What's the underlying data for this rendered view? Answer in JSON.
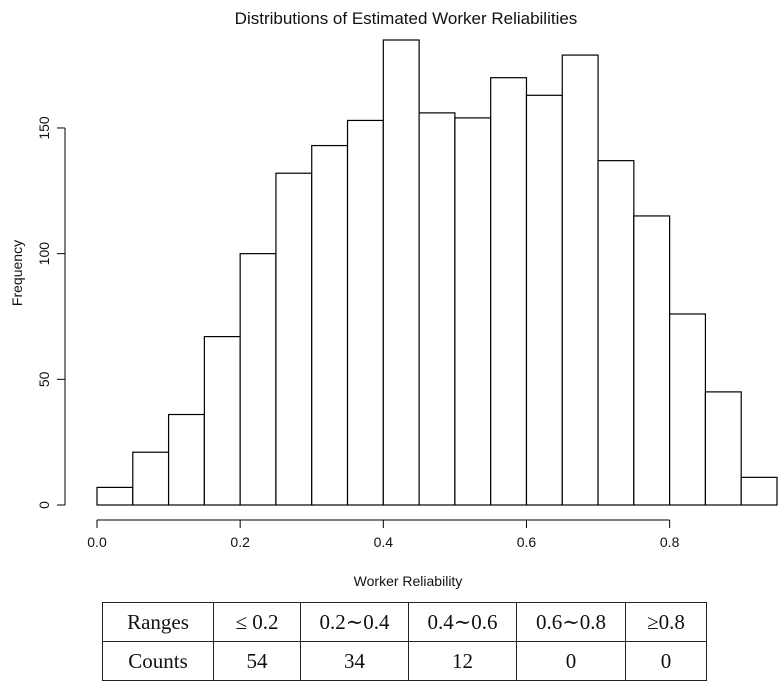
{
  "chart_data": {
    "type": "bar",
    "title": "Distributions of Estimated Worker Reliabilities",
    "xlabel": "Worker Reliability",
    "ylabel": "Frequency",
    "bin_width": 0.05,
    "bins": [
      {
        "start": 0.0,
        "end": 0.05,
        "count": 7
      },
      {
        "start": 0.05,
        "end": 0.1,
        "count": 21
      },
      {
        "start": 0.1,
        "end": 0.15,
        "count": 36
      },
      {
        "start": 0.15,
        "end": 0.2,
        "count": 67
      },
      {
        "start": 0.2,
        "end": 0.25,
        "count": 100
      },
      {
        "start": 0.25,
        "end": 0.3,
        "count": 132
      },
      {
        "start": 0.3,
        "end": 0.35,
        "count": 143
      },
      {
        "start": 0.35,
        "end": 0.4,
        "count": 153
      },
      {
        "start": 0.4,
        "end": 0.45,
        "count": 185
      },
      {
        "start": 0.45,
        "end": 0.5,
        "count": 156
      },
      {
        "start": 0.5,
        "end": 0.55,
        "count": 154
      },
      {
        "start": 0.55,
        "end": 0.6,
        "count": 170
      },
      {
        "start": 0.6,
        "end": 0.65,
        "count": 163
      },
      {
        "start": 0.65,
        "end": 0.7,
        "count": 179
      },
      {
        "start": 0.7,
        "end": 0.75,
        "count": 137
      },
      {
        "start": 0.75,
        "end": 0.8,
        "count": 115
      },
      {
        "start": 0.8,
        "end": 0.85,
        "count": 76
      },
      {
        "start": 0.85,
        "end": 0.9,
        "count": 45
      },
      {
        "start": 0.9,
        "end": 0.95,
        "count": 11
      }
    ],
    "xlim": [
      0,
      0.95
    ],
    "ylim": [
      0,
      185
    ],
    "x_ticks": [
      "0.0",
      "0.2",
      "0.4",
      "0.6",
      "0.8"
    ],
    "x_tick_values": [
      0.0,
      0.2,
      0.4,
      0.6,
      0.8
    ],
    "y_ticks": [
      "0",
      "50",
      "100",
      "150"
    ],
    "y_tick_values": [
      0,
      50,
      100,
      150
    ],
    "grid": false,
    "bar_fill": "#ffffff",
    "bar_stroke": "#000000"
  },
  "table": {
    "header": [
      "Ranges",
      "≤ 0.2",
      "0.2∼0.4",
      "0.4∼0.6",
      "0.6∼0.8",
      "≥0.8"
    ],
    "row": [
      "Counts",
      "54",
      "34",
      "12",
      "0",
      "0"
    ]
  }
}
